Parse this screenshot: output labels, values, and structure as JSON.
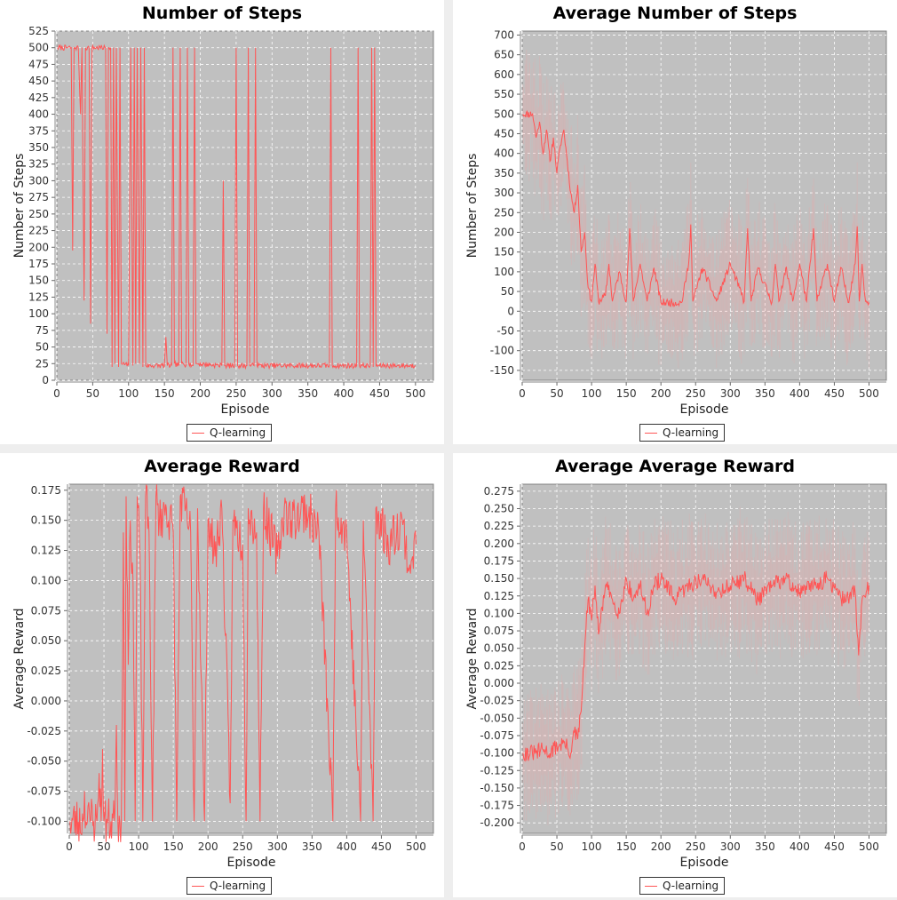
{
  "chart_data": [
    {
      "type": "line",
      "title": "Number of Steps",
      "xlabel": "Episode",
      "ylabel": "Number of Steps",
      "xlim": [
        0,
        525
      ],
      "ylim": [
        0,
        525
      ],
      "xticks": [
        0,
        50,
        100,
        150,
        200,
        250,
        300,
        350,
        400,
        450,
        500
      ],
      "yticks": [
        0,
        25,
        50,
        75,
        100,
        125,
        150,
        175,
        200,
        225,
        250,
        275,
        300,
        325,
        350,
        375,
        400,
        425,
        450,
        475,
        500,
        525
      ],
      "tick_decimals": 0,
      "grid": true,
      "legend_position": "bottom",
      "series": [
        {
          "name": "Q-learning",
          "color": "#ff5555",
          "band": false,
          "keypoints": [
            [
              1,
              500
            ],
            [
              20,
              500
            ],
            [
              22,
              195
            ],
            [
              24,
              500
            ],
            [
              30,
              500
            ],
            [
              33,
              400
            ],
            [
              35,
              500
            ],
            [
              38,
              120
            ],
            [
              40,
              500
            ],
            [
              45,
              500
            ],
            [
              47,
              85
            ],
            [
              49,
              500
            ],
            [
              68,
              500
            ],
            [
              70,
              70
            ],
            [
              72,
              500
            ],
            [
              75,
              500
            ],
            [
              77,
              20
            ],
            [
              79,
              500
            ],
            [
              81,
              25
            ],
            [
              83,
              500
            ],
            [
              86,
              20
            ],
            [
              88,
              500
            ],
            [
              90,
              25
            ],
            [
              100,
              22
            ],
            [
              103,
              500
            ],
            [
              106,
              22
            ],
            [
              108,
              500
            ],
            [
              110,
              25
            ],
            [
              112,
              500
            ],
            [
              115,
              25
            ],
            [
              117,
              500
            ],
            [
              120,
              20
            ],
            [
              122,
              500
            ],
            [
              124,
              22
            ],
            [
              150,
              22
            ],
            [
              152,
              65
            ],
            [
              154,
              22
            ],
            [
              160,
              22
            ],
            [
              162,
              500
            ],
            [
              164,
              25
            ],
            [
              170,
              22
            ],
            [
              172,
              500
            ],
            [
              174,
              25
            ],
            [
              180,
              22
            ],
            [
              182,
              500
            ],
            [
              184,
              25
            ],
            [
              190,
              22
            ],
            [
              192,
              500
            ],
            [
              194,
              25
            ],
            [
              230,
              22
            ],
            [
              232,
              300
            ],
            [
              234,
              22
            ],
            [
              248,
              22
            ],
            [
              250,
              500
            ],
            [
              252,
              22
            ],
            [
              265,
              22
            ],
            [
              267,
              500
            ],
            [
              269,
              22
            ],
            [
              275,
              22
            ],
            [
              277,
              500
            ],
            [
              279,
              22
            ],
            [
              380,
              22
            ],
            [
              382,
              500
            ],
            [
              384,
              22
            ],
            [
              418,
              22
            ],
            [
              420,
              500
            ],
            [
              422,
              22
            ],
            [
              437,
              22
            ],
            [
              439,
              500
            ],
            [
              441,
              20
            ],
            [
              443,
              500
            ],
            [
              445,
              22
            ],
            [
              500,
              22
            ]
          ],
          "noise_amp": 4,
          "noise_seed": 7
        }
      ]
    },
    {
      "type": "line",
      "title": "Average Number of Steps",
      "xlabel": "Episode",
      "ylabel": "Number of Steps",
      "xlim": [
        0,
        525
      ],
      "ylim": [
        -175,
        710
      ],
      "xticks": [
        0,
        50,
        100,
        150,
        200,
        250,
        300,
        350,
        400,
        450,
        500
      ],
      "yticks": [
        -150,
        -100,
        -50,
        0,
        50,
        100,
        150,
        200,
        250,
        300,
        350,
        400,
        450,
        500,
        550,
        600,
        650,
        700
      ],
      "tick_decimals": 0,
      "grid": true,
      "legend_position": "bottom",
      "series": [
        {
          "name": "Q-learning",
          "color": "#ff5555",
          "band": true,
          "keypoints": [
            [
              1,
              500
            ],
            [
              15,
              500
            ],
            [
              20,
              440
            ],
            [
              25,
              480
            ],
            [
              30,
              400
            ],
            [
              35,
              460
            ],
            [
              40,
              380
            ],
            [
              45,
              440
            ],
            [
              50,
              350
            ],
            [
              55,
              420
            ],
            [
              60,
              460
            ],
            [
              65,
              380
            ],
            [
              70,
              300
            ],
            [
              75,
              250
            ],
            [
              80,
              320
            ],
            [
              85,
              150
            ],
            [
              90,
              200
            ],
            [
              95,
              60
            ],
            [
              100,
              25
            ],
            [
              105,
              120
            ],
            [
              110,
              25
            ],
            [
              120,
              40
            ],
            [
              125,
              120
            ],
            [
              130,
              25
            ],
            [
              140,
              100
            ],
            [
              150,
              25
            ],
            [
              155,
              210
            ],
            [
              160,
              25
            ],
            [
              170,
              120
            ],
            [
              180,
              25
            ],
            [
              190,
              110
            ],
            [
              200,
              22
            ],
            [
              230,
              22
            ],
            [
              240,
              120
            ],
            [
              243,
              220
            ],
            [
              246,
              25
            ],
            [
              260,
              110
            ],
            [
              280,
              25
            ],
            [
              300,
              120
            ],
            [
              320,
              25
            ],
            [
              325,
              210
            ],
            [
              330,
              25
            ],
            [
              340,
              110
            ],
            [
              360,
              22
            ],
            [
              365,
              120
            ],
            [
              370,
              25
            ],
            [
              380,
              110
            ],
            [
              390,
              25
            ],
            [
              400,
              120
            ],
            [
              410,
              25
            ],
            [
              420,
              210
            ],
            [
              425,
              25
            ],
            [
              440,
              120
            ],
            [
              450,
              25
            ],
            [
              460,
              110
            ],
            [
              470,
              22
            ],
            [
              480,
              120
            ],
            [
              483,
              215
            ],
            [
              486,
              25
            ],
            [
              490,
              120
            ],
            [
              495,
              25
            ],
            [
              500,
              22
            ]
          ],
          "noise_amp": 10,
          "noise_seed": 11
        }
      ]
    },
    {
      "type": "line",
      "title": "Average Reward",
      "xlabel": "Episode",
      "ylabel": "Average Reward",
      "xlim": [
        0,
        525
      ],
      "ylim": [
        -0.11,
        0.18
      ],
      "xticks": [
        0,
        50,
        100,
        150,
        200,
        250,
        300,
        350,
        400,
        450,
        500
      ],
      "yticks": [
        -0.1,
        -0.075,
        -0.05,
        -0.025,
        0,
        0.025,
        0.05,
        0.075,
        0.1,
        0.125,
        0.15,
        0.175
      ],
      "tick_decimals": 3,
      "grid": true,
      "legend_position": "bottom",
      "series": [
        {
          "name": "Q-learning",
          "color": "#ff5555",
          "band": false,
          "keypoints": [
            [
              1,
              -0.1
            ],
            [
              20,
              -0.1
            ],
            [
              22,
              -0.075
            ],
            [
              24,
              -0.1
            ],
            [
              30,
              -0.1
            ],
            [
              33,
              -0.088
            ],
            [
              35,
              -0.1
            ],
            [
              40,
              -0.1
            ],
            [
              43,
              -0.06
            ],
            [
              46,
              -0.1
            ],
            [
              48,
              -0.04
            ],
            [
              50,
              -0.1
            ],
            [
              65,
              -0.1
            ],
            [
              68,
              -0.02
            ],
            [
              70,
              -0.1
            ],
            [
              75,
              -0.1
            ],
            [
              78,
              0.14
            ],
            [
              80,
              -0.1
            ],
            [
              82,
              0.17
            ],
            [
              85,
              0.03
            ],
            [
              88,
              0.15
            ],
            [
              92,
              0.1
            ],
            [
              95,
              -0.1
            ],
            [
              98,
              0.17
            ],
            [
              102,
              0.12
            ],
            [
              106,
              -0.1
            ],
            [
              110,
              0.17
            ],
            [
              115,
              0.14
            ],
            [
              120,
              -0.1
            ],
            [
              125,
              0.17
            ],
            [
              130,
              0.15
            ],
            [
              140,
              0.16
            ],
            [
              150,
              0.14
            ],
            [
              155,
              -0.1
            ],
            [
              160,
              0.17
            ],
            [
              175,
              0.14
            ],
            [
              180,
              -0.1
            ],
            [
              185,
              0.16
            ],
            [
              195,
              -0.1
            ],
            [
              200,
              0.15
            ],
            [
              210,
              0.12
            ],
            [
              220,
              0.16
            ],
            [
              232,
              -0.085
            ],
            [
              236,
              0.15
            ],
            [
              250,
              0.13
            ],
            [
              255,
              -0.1
            ],
            [
              258,
              0.16
            ],
            [
              270,
              0.14
            ],
            [
              275,
              -0.1
            ],
            [
              280,
              0.16
            ],
            [
              300,
              0.12
            ],
            [
              310,
              0.16
            ],
            [
              320,
              0.15
            ],
            [
              340,
              0.16
            ],
            [
              360,
              0.14
            ],
            [
              380,
              -0.1
            ],
            [
              384,
              0.16
            ],
            [
              400,
              0.14
            ],
            [
              420,
              -0.1
            ],
            [
              424,
              0.15
            ],
            [
              438,
              -0.1
            ],
            [
              442,
              0.16
            ],
            [
              460,
              0.13
            ],
            [
              480,
              0.15
            ],
            [
              490,
              0.11
            ],
            [
              495,
              0.12
            ],
            [
              500,
              0.13
            ]
          ],
          "noise_amp": 0.02,
          "noise_seed": 23
        }
      ]
    },
    {
      "type": "line",
      "title": "Average Average Reward",
      "xlabel": "Episode",
      "ylabel": "Average Reward",
      "xlim": [
        0,
        525
      ],
      "ylim": [
        -0.215,
        0.285
      ],
      "xticks": [
        0,
        50,
        100,
        150,
        200,
        250,
        300,
        350,
        400,
        450,
        500
      ],
      "yticks": [
        -0.2,
        -0.175,
        -0.15,
        -0.125,
        -0.1,
        -0.075,
        -0.05,
        -0.025,
        0,
        0.025,
        0.05,
        0.075,
        0.1,
        0.125,
        0.15,
        0.175,
        0.2,
        0.225,
        0.25,
        0.275
      ],
      "tick_decimals": 3,
      "grid": true,
      "legend_position": "bottom",
      "series": [
        {
          "name": "Q-learning",
          "color": "#ff5555",
          "band": true,
          "keypoints": [
            [
              1,
              -0.1
            ],
            [
              20,
              -0.1
            ],
            [
              30,
              -0.095
            ],
            [
              40,
              -0.1
            ],
            [
              50,
              -0.09
            ],
            [
              60,
              -0.085
            ],
            [
              70,
              -0.1
            ],
            [
              75,
              -0.07
            ],
            [
              80,
              -0.08
            ],
            [
              85,
              -0.04
            ],
            [
              90,
              0.05
            ],
            [
              95,
              0.12
            ],
            [
              100,
              0.09
            ],
            [
              105,
              0.14
            ],
            [
              110,
              0.07
            ],
            [
              120,
              0.14
            ],
            [
              130,
              0.12
            ],
            [
              140,
              0.1
            ],
            [
              150,
              0.15
            ],
            [
              160,
              0.12
            ],
            [
              170,
              0.14
            ],
            [
              180,
              0.1
            ],
            [
              190,
              0.14
            ],
            [
              200,
              0.15
            ],
            [
              220,
              0.12
            ],
            [
              240,
              0.14
            ],
            [
              260,
              0.15
            ],
            [
              280,
              0.13
            ],
            [
              300,
              0.14
            ],
            [
              320,
              0.15
            ],
            [
              340,
              0.12
            ],
            [
              360,
              0.14
            ],
            [
              380,
              0.15
            ],
            [
              400,
              0.13
            ],
            [
              420,
              0.14
            ],
            [
              440,
              0.15
            ],
            [
              460,
              0.12
            ],
            [
              480,
              0.13
            ],
            [
              485,
              0.04
            ],
            [
              490,
              0.12
            ],
            [
              500,
              0.14
            ]
          ],
          "noise_amp": 0.012,
          "noise_seed": 31
        }
      ]
    }
  ]
}
